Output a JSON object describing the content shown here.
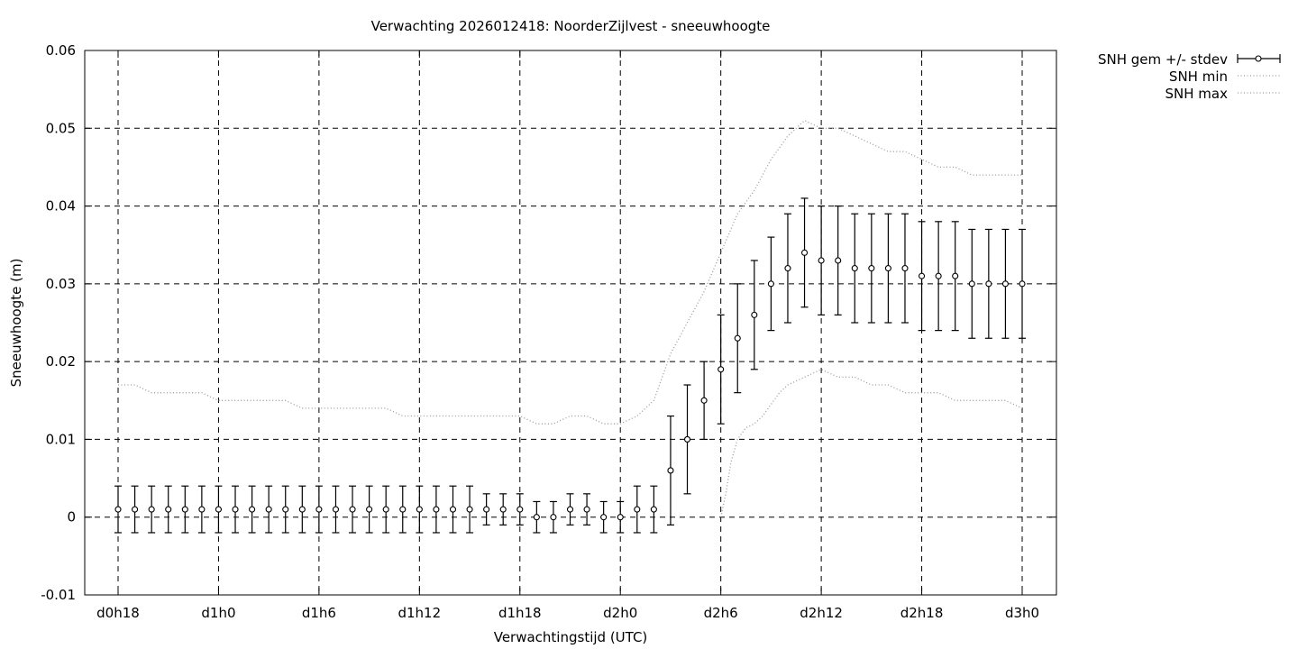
{
  "chart_data": {
    "type": "line",
    "title": "Verwachting 2026012418: NoorderZijlvest - sneeuwhoogte",
    "xlabel": "Verwachtingstijd (UTC)",
    "ylabel": "Sneeuwhoogte (m)",
    "x_unit": "forecast hour",
    "xlim": [
      18,
      72
    ],
    "ylim": [
      -0.01,
      0.06
    ],
    "x_ticks": [
      {
        "x": 18,
        "label": "d0h18"
      },
      {
        "x": 24,
        "label": "d1h0"
      },
      {
        "x": 30,
        "label": "d1h6"
      },
      {
        "x": 36,
        "label": "d1h12"
      },
      {
        "x": 42,
        "label": "d1h18"
      },
      {
        "x": 48,
        "label": "d2h0"
      },
      {
        "x": 54,
        "label": "d2h6"
      },
      {
        "x": 60,
        "label": "d2h12"
      },
      {
        "x": 66,
        "label": "d2h18"
      },
      {
        "x": 72,
        "label": "d3h0"
      }
    ],
    "y_ticks": [
      {
        "y": 0.06,
        "label": "0.06"
      },
      {
        "y": 0.05,
        "label": "0.05"
      },
      {
        "y": 0.04,
        "label": "0.04"
      },
      {
        "y": 0.03,
        "label": "0.03"
      },
      {
        "y": 0.02,
        "label": "0.02"
      },
      {
        "y": 0.01,
        "label": "0.01"
      },
      {
        "y": 0,
        "label": "0"
      },
      {
        "y": -0.01,
        "label": "-0.01"
      }
    ],
    "grid": true,
    "legend_position": "outside-top-right",
    "series": [
      {
        "name": "SNH gem +/- stdev",
        "style": "errorbars",
        "color": "#000000",
        "x": [
          18,
          19,
          20,
          21,
          22,
          23,
          24,
          25,
          26,
          27,
          28,
          29,
          30,
          31,
          32,
          33,
          34,
          35,
          36,
          37,
          38,
          39,
          40,
          41,
          42,
          43,
          44,
          45,
          46,
          47,
          48,
          49,
          50,
          51,
          52,
          53,
          54,
          55,
          56,
          57,
          58,
          59,
          60,
          61,
          62,
          63,
          64,
          65,
          66,
          67,
          68,
          69,
          70,
          71,
          72
        ],
        "mean": [
          0.001,
          0.001,
          0.001,
          0.001,
          0.001,
          0.001,
          0.001,
          0.001,
          0.001,
          0.001,
          0.001,
          0.001,
          0.001,
          0.001,
          0.001,
          0.001,
          0.001,
          0.001,
          0.001,
          0.001,
          0.001,
          0.001,
          0.001,
          0.001,
          0.001,
          0.0,
          0.0,
          0.001,
          0.001,
          0.0,
          0.0,
          0.001,
          0.001,
          0.006,
          0.01,
          0.015,
          0.019,
          0.023,
          0.026,
          0.03,
          0.032,
          0.034,
          0.033,
          0.033,
          0.032,
          0.032,
          0.032,
          0.032,
          0.031,
          0.031,
          0.031,
          0.03,
          0.03,
          0.03,
          0.03
        ],
        "lower": [
          -0.002,
          -0.002,
          -0.002,
          -0.002,
          -0.002,
          -0.002,
          -0.002,
          -0.002,
          -0.002,
          -0.002,
          -0.002,
          -0.002,
          -0.002,
          -0.002,
          -0.002,
          -0.002,
          -0.002,
          -0.002,
          -0.002,
          -0.002,
          -0.002,
          -0.002,
          -0.001,
          -0.001,
          -0.001,
          -0.002,
          -0.002,
          -0.001,
          -0.001,
          -0.002,
          -0.002,
          -0.002,
          -0.002,
          -0.001,
          0.003,
          0.01,
          0.012,
          0.016,
          0.019,
          0.024,
          0.025,
          0.027,
          0.026,
          0.026,
          0.025,
          0.025,
          0.025,
          0.025,
          0.024,
          0.024,
          0.024,
          0.023,
          0.023,
          0.023,
          0.023
        ],
        "upper": [
          0.004,
          0.004,
          0.004,
          0.004,
          0.004,
          0.004,
          0.004,
          0.004,
          0.004,
          0.004,
          0.004,
          0.004,
          0.004,
          0.004,
          0.004,
          0.004,
          0.004,
          0.004,
          0.004,
          0.004,
          0.004,
          0.004,
          0.003,
          0.003,
          0.003,
          0.002,
          0.002,
          0.003,
          0.003,
          0.002,
          0.002,
          0.004,
          0.004,
          0.013,
          0.017,
          0.02,
          0.026,
          0.03,
          0.033,
          0.036,
          0.039,
          0.041,
          0.04,
          0.04,
          0.039,
          0.039,
          0.039,
          0.039,
          0.038,
          0.038,
          0.038,
          0.037,
          0.037,
          0.037,
          0.037
        ]
      },
      {
        "name": "SNH min",
        "style": "dotted",
        "color": "#9a9a9a",
        "x": [
          54,
          54.3,
          54.6,
          55,
          55.5,
          56,
          56.5,
          57,
          57.5,
          58,
          59,
          60,
          61,
          62,
          63,
          64,
          65,
          66,
          67,
          68,
          69,
          70,
          71,
          72
        ],
        "y": [
          0.0,
          0.003,
          0.007,
          0.01,
          0.0115,
          0.012,
          0.013,
          0.0145,
          0.016,
          0.017,
          0.018,
          0.019,
          0.018,
          0.018,
          0.017,
          0.017,
          0.016,
          0.016,
          0.016,
          0.015,
          0.015,
          0.015,
          0.015,
          0.014
        ]
      },
      {
        "name": "SNH max",
        "style": "dotted",
        "color": "#9a9a9a",
        "x": [
          18,
          19,
          20,
          21,
          22,
          23,
          24,
          25,
          26,
          27,
          28,
          29,
          30,
          31,
          32,
          33,
          34,
          35,
          36,
          37,
          38,
          39,
          40,
          41,
          42,
          43,
          44,
          45,
          46,
          47,
          48,
          49,
          50,
          51,
          52,
          53,
          54,
          55,
          56,
          57,
          58,
          59,
          60,
          61,
          62,
          63,
          64,
          65,
          66,
          67,
          68,
          69,
          70,
          71,
          72
        ],
        "y": [
          0.017,
          0.017,
          0.016,
          0.016,
          0.016,
          0.016,
          0.015,
          0.015,
          0.015,
          0.015,
          0.015,
          0.014,
          0.014,
          0.014,
          0.014,
          0.014,
          0.014,
          0.013,
          0.013,
          0.013,
          0.013,
          0.013,
          0.013,
          0.013,
          0.013,
          0.012,
          0.012,
          0.013,
          0.013,
          0.012,
          0.012,
          0.013,
          0.015,
          0.021,
          0.025,
          0.029,
          0.034,
          0.039,
          0.042,
          0.046,
          0.049,
          0.051,
          0.05,
          0.05,
          0.049,
          0.048,
          0.047,
          0.047,
          0.046,
          0.045,
          0.045,
          0.044,
          0.044,
          0.044,
          0.044
        ]
      }
    ]
  }
}
